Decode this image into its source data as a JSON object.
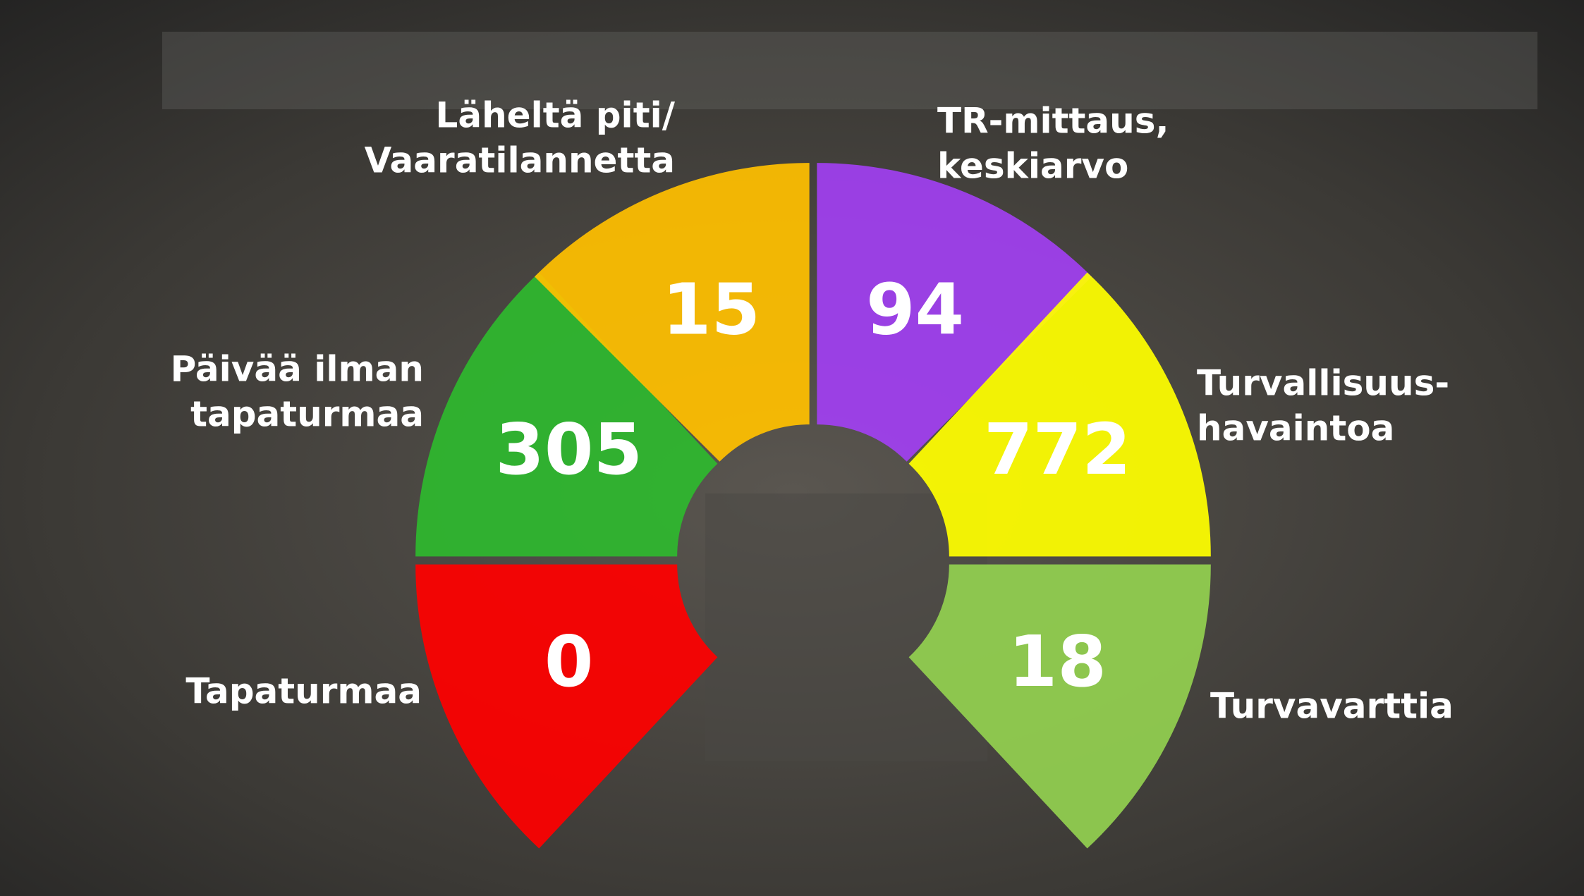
{
  "segments": [
    {
      "label": [
        "Tapaturmaa"
      ],
      "value": "0",
      "color": "#ff0000"
    },
    {
      "label": [
        "Päivää ilman",
        "tapaturmaa"
      ],
      "value": "305",
      "color": "#2eb82e"
    },
    {
      "label": [
        "Läheltä piti/",
        "Vaaratilannetta"
      ],
      "value": "15",
      "color": "#ffc000"
    },
    {
      "label": [
        "TR-mittaus,",
        "keskiarvo"
      ],
      "value": "94",
      "color": "#a040f0"
    },
    {
      "label": [
        "Turvallisuus-",
        "havaintoa"
      ],
      "value": "772",
      "color": "#ffff00"
    },
    {
      "label": [
        "Turvavarttia"
      ],
      "value": "18",
      "color": "#92d050"
    }
  ]
}
